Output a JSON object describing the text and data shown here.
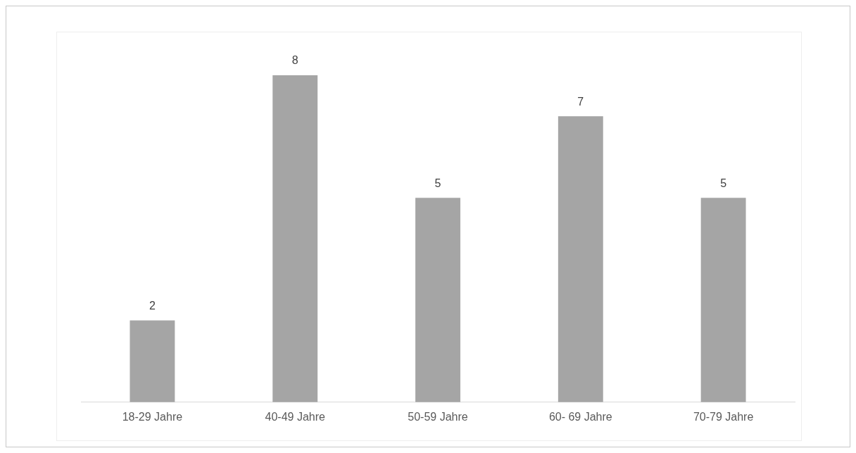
{
  "chart_data": {
    "type": "bar",
    "categories": [
      "18-29 Jahre",
      "40-49 Jahre",
      "50-59 Jahre",
      "60- 69 Jahre",
      "70-79 Jahre"
    ],
    "values": [
      2,
      8,
      5,
      7,
      5
    ],
    "color": "#a5a5a5",
    "data_labels": true,
    "grid": false,
    "legend": false
  }
}
